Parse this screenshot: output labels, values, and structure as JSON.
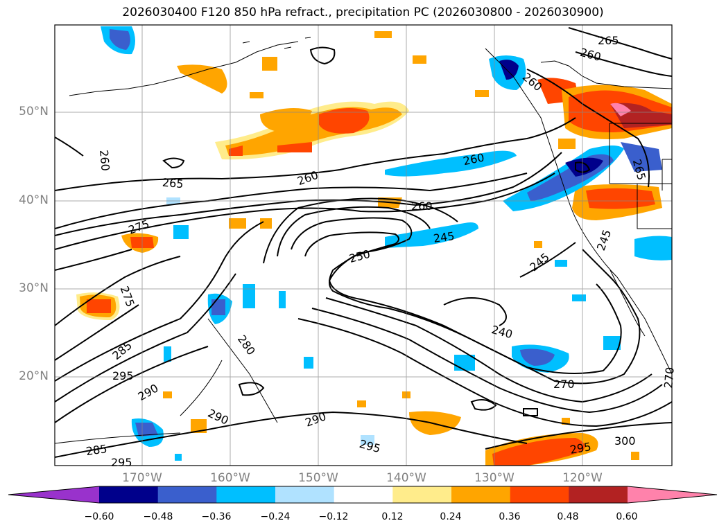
{
  "title": "2026030400 F120 850 hPa refract., precipitation PC (2026030800 - 2026030900)",
  "lat_labels": [
    "50°N",
    "40°N",
    "30°N",
    "20°N"
  ],
  "lon_labels": [
    "170°W",
    "160°W",
    "150°W",
    "140°W",
    "130°W",
    "120°W"
  ],
  "colorbar": {
    "ticks": [
      "−0.60",
      "−0.48",
      "−0.36",
      "−0.24",
      "−0.12",
      "0.12",
      "0.24",
      "0.36",
      "0.48",
      "0.60"
    ],
    "colors": [
      "#9932cc",
      "#00008b",
      "#3a5fcd",
      "#00bfff",
      "#b0e2ff",
      "#ffffff",
      "#ffec8b",
      "#ffa500",
      "#ff4500",
      "#b22222",
      "#ff82ab"
    ]
  },
  "contour_labels": [
    "265",
    "260",
    "260",
    "260",
    "260",
    "265",
    "260",
    "260",
    "275",
    "275",
    "250",
    "245",
    "245",
    "240",
    "285",
    "280",
    "295",
    "290",
    "290",
    "290",
    "270",
    "270",
    "285",
    "295",
    "295",
    "300",
    "295",
    "245",
    "265"
  ]
}
